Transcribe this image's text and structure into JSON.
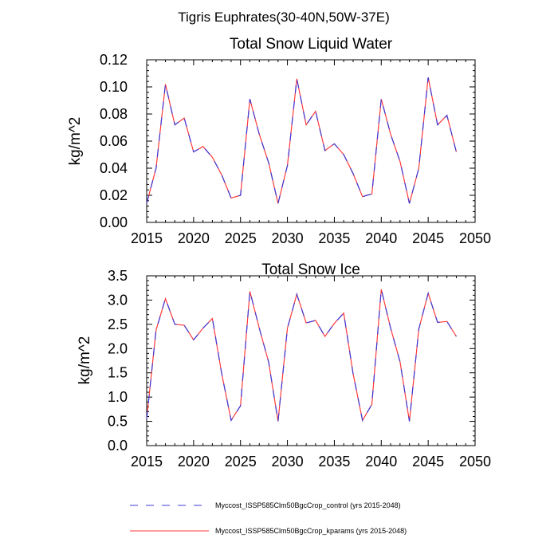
{
  "figure": {
    "suptitle": "Tigris Euphrates(30-40N,50W-37E)"
  },
  "colors": {
    "control": "#3b3bd8",
    "kparams": "#ff3b3b",
    "axis": "#000000"
  },
  "legend": {
    "items": [
      {
        "label": "Myccost_ISSP585Clm50BgcCrop_control (yrs 2015-2048)",
        "style": "dashed",
        "color": "#3b3bd8"
      },
      {
        "label": "Myccost_ISSP585Clm50BgcCrop_kparams (yrs 2015-2048)",
        "style": "solid",
        "color": "#ff3b3b"
      }
    ]
  },
  "chart_data": [
    {
      "type": "line",
      "title": "Total Snow Liquid Water",
      "xlabel": "",
      "ylabel": "kg/m^2",
      "xlim": [
        2015,
        2050
      ],
      "ylim": [
        0,
        0.12
      ],
      "xticks": [
        2015,
        2020,
        2025,
        2030,
        2035,
        2040,
        2045,
        2050
      ],
      "xtick_labels": [
        "2015",
        "2020",
        "2025",
        "2030",
        "2035",
        "2040",
        "2045",
        "2050"
      ],
      "yticks": [
        0,
        0.02,
        0.04,
        0.06,
        0.08,
        0.1,
        0.12
      ],
      "ytick_labels": [
        "0.00",
        "0.02",
        "0.04",
        "0.06",
        "0.08",
        "0.10",
        "0.12"
      ],
      "x": [
        2015,
        2016,
        2017,
        2018,
        2019,
        2020,
        2021,
        2022,
        2023,
        2024,
        2025,
        2026,
        2027,
        2028,
        2029,
        2030,
        2031,
        2032,
        2033,
        2034,
        2035,
        2036,
        2037,
        2038,
        2039,
        2040,
        2041,
        2042,
        2043,
        2044,
        2045,
        2046,
        2047,
        2048
      ],
      "series": [
        {
          "name": "Myccost_ISSP585Clm50BgcCrop_control (yrs 2015-2048)",
          "values": [
            0.014,
            0.04,
            0.102,
            0.072,
            0.077,
            0.052,
            0.056,
            0.048,
            0.035,
            0.018,
            0.02,
            0.091,
            0.065,
            0.044,
            0.014,
            0.042,
            0.106,
            0.072,
            0.082,
            0.053,
            0.058,
            0.05,
            0.036,
            0.019,
            0.021,
            0.091,
            0.065,
            0.045,
            0.014,
            0.04,
            0.107,
            0.072,
            0.079,
            0.052
          ]
        },
        {
          "name": "Myccost_ISSP585Clm50BgcCrop_kparams (yrs 2015-2048)",
          "values": [
            0.014,
            0.04,
            0.102,
            0.072,
            0.077,
            0.052,
            0.056,
            0.048,
            0.035,
            0.018,
            0.02,
            0.091,
            0.065,
            0.044,
            0.014,
            0.042,
            0.106,
            0.072,
            0.082,
            0.053,
            0.058,
            0.05,
            0.036,
            0.019,
            0.021,
            0.091,
            0.065,
            0.045,
            0.014,
            0.04,
            0.107,
            0.072,
            0.079,
            0.052
          ]
        }
      ]
    },
    {
      "type": "line",
      "title": "Total Snow Ice",
      "xlabel": "",
      "ylabel": "kg/m^2",
      "xlim": [
        2015,
        2050
      ],
      "ylim": [
        0,
        3.5
      ],
      "xticks": [
        2015,
        2020,
        2025,
        2030,
        2035,
        2040,
        2045,
        2050
      ],
      "xtick_labels": [
        "2015",
        "2020",
        "2025",
        "2030",
        "2035",
        "2040",
        "2045",
        "2050"
      ],
      "yticks": [
        0,
        0.5,
        1.0,
        1.5,
        2.0,
        2.5,
        3.0,
        3.5
      ],
      "ytick_labels": [
        "0.0",
        "0.5",
        "1.0",
        "1.5",
        "2.0",
        "2.5",
        "3.0",
        "3.5"
      ],
      "x": [
        2015,
        2016,
        2017,
        2018,
        2019,
        2020,
        2021,
        2022,
        2023,
        2024,
        2025,
        2026,
        2027,
        2028,
        2029,
        2030,
        2031,
        2032,
        2033,
        2034,
        2035,
        2036,
        2037,
        2038,
        2039,
        2040,
        2041,
        2042,
        2043,
        2044,
        2045,
        2046,
        2047,
        2048
      ],
      "series": [
        {
          "name": "Myccost_ISSP585Clm50BgcCrop_control (yrs 2015-2048)",
          "values": [
            0.55,
            2.38,
            3.03,
            2.5,
            2.48,
            2.18,
            2.42,
            2.62,
            1.48,
            0.52,
            0.82,
            3.18,
            2.42,
            1.72,
            0.5,
            2.42,
            3.12,
            2.53,
            2.58,
            2.25,
            2.52,
            2.73,
            1.48,
            0.52,
            0.85,
            3.22,
            2.42,
            1.73,
            0.5,
            2.4,
            3.14,
            2.54,
            2.56,
            2.25
          ]
        },
        {
          "name": "Myccost_ISSP585Clm50BgcCrop_kparams (yrs 2015-2048)",
          "values": [
            0.55,
            2.38,
            3.03,
            2.5,
            2.48,
            2.18,
            2.42,
            2.62,
            1.48,
            0.52,
            0.82,
            3.18,
            2.42,
            1.72,
            0.5,
            2.42,
            3.12,
            2.53,
            2.58,
            2.25,
            2.52,
            2.73,
            1.48,
            0.52,
            0.85,
            3.22,
            2.42,
            1.73,
            0.5,
            2.4,
            3.14,
            2.54,
            2.56,
            2.25
          ]
        }
      ]
    }
  ]
}
